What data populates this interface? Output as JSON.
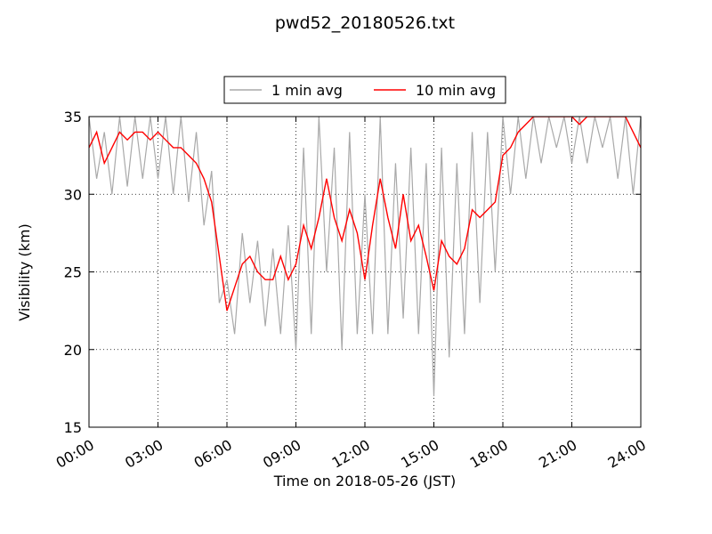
{
  "chart_data": {
    "type": "line",
    "title": "pwd52_20180526.txt",
    "xlabel": "Time on 2018-05-26 (JST)",
    "ylabel": "Visibility (km)",
    "xlim": [
      0,
      1440
    ],
    "ylim": [
      15,
      35
    ],
    "xticks": [
      {
        "value": 0,
        "label": "00:00"
      },
      {
        "value": 180,
        "label": "03:00"
      },
      {
        "value": 360,
        "label": "06:00"
      },
      {
        "value": 540,
        "label": "09:00"
      },
      {
        "value": 720,
        "label": "12:00"
      },
      {
        "value": 900,
        "label": "15:00"
      },
      {
        "value": 1080,
        "label": "18:00"
      },
      {
        "value": 1260,
        "label": "21:00"
      },
      {
        "value": 1440,
        "label": "24:00"
      }
    ],
    "yticks": [
      15,
      20,
      25,
      30,
      35
    ],
    "grid": true,
    "x": [
      0,
      20,
      40,
      60,
      80,
      100,
      120,
      140,
      160,
      180,
      200,
      220,
      240,
      260,
      280,
      300,
      320,
      340,
      360,
      380,
      400,
      420,
      440,
      460,
      480,
      500,
      520,
      540,
      560,
      580,
      600,
      620,
      640,
      660,
      680,
      700,
      720,
      740,
      760,
      780,
      800,
      820,
      840,
      860,
      880,
      900,
      920,
      940,
      960,
      980,
      1000,
      1020,
      1040,
      1060,
      1080,
      1100,
      1120,
      1140,
      1160,
      1180,
      1200,
      1220,
      1240,
      1260,
      1280,
      1300,
      1320,
      1340,
      1360,
      1380,
      1400,
      1420,
      1440
    ],
    "series": [
      {
        "name": "1 min avg",
        "color": "#a9a9a9",
        "values": [
          35,
          31,
          34,
          30,
          35,
          30.5,
          35,
          31,
          35,
          31,
          35,
          30,
          35,
          29.5,
          34,
          28,
          31.5,
          23,
          24.5,
          21,
          27.5,
          23,
          27,
          21.5,
          26.5,
          21,
          28,
          20,
          33,
          21,
          35,
          25,
          33,
          20,
          34,
          21,
          30,
          21,
          35,
          21,
          32,
          22,
          33,
          21,
          32,
          17,
          33,
          19.5,
          32,
          21,
          34,
          23,
          34,
          25,
          35,
          30,
          35,
          31,
          35,
          32,
          35,
          33,
          35,
          32,
          35,
          32,
          35,
          33,
          35,
          31,
          35,
          30,
          35
        ]
      },
      {
        "name": "10 min avg",
        "color": "#ff0000",
        "values": [
          33,
          34,
          32,
          33,
          34,
          33.5,
          34,
          34,
          33.5,
          34,
          33.5,
          33,
          33,
          32.5,
          32,
          31,
          29.5,
          26,
          22.5,
          24,
          25.5,
          26,
          25,
          24.5,
          24.5,
          26,
          24.5,
          25.5,
          28,
          26.5,
          28.5,
          31,
          28.5,
          27,
          29,
          27.5,
          24.5,
          28,
          31,
          28.5,
          26.5,
          30,
          27,
          28,
          26,
          23.8,
          27,
          26,
          25.5,
          26.5,
          29,
          28.5,
          29,
          29.5,
          32.5,
          33,
          34,
          34.5,
          35,
          35,
          35,
          35,
          35,
          35,
          34.5,
          35,
          35,
          35,
          35,
          35,
          35,
          34,
          33
        ]
      }
    ]
  }
}
